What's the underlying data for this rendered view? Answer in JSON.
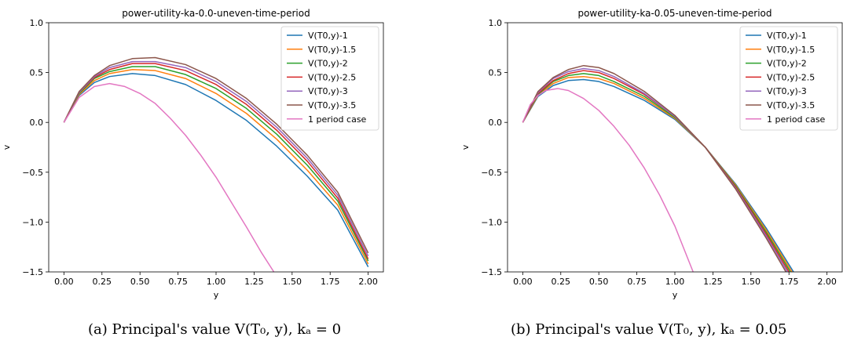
{
  "chart_data": [
    {
      "type": "line",
      "title": "power-utility-ka-0.0-uneven-time-period",
      "xlabel": "y",
      "ylabel": "v",
      "xlim": [
        -0.1,
        2.1
      ],
      "ylim": [
        -1.5,
        1.0
      ],
      "xticks": [
        "0.00",
        "0.25",
        "0.50",
        "0.75",
        "1.00",
        "1.25",
        "1.50",
        "1.75",
        "2.00"
      ],
      "yticks": [
        "1.0",
        "0.5",
        "0.0",
        "−0.5",
        "−1.0",
        "−1.5"
      ],
      "legend_position": "top-right",
      "grid": false,
      "series": [
        {
          "name": "V(T0,y)-1",
          "color": "#1f77b4",
          "x": [
            0,
            0.1,
            0.2,
            0.3,
            0.45,
            0.6,
            0.8,
            1.0,
            1.2,
            1.4,
            1.6,
            1.8,
            2.0
          ],
          "y": [
            0,
            0.27,
            0.4,
            0.46,
            0.49,
            0.47,
            0.38,
            0.22,
            0.02,
            -0.24,
            -0.54,
            -0.88,
            -1.45
          ]
        },
        {
          "name": "V(T0,y)-1.5",
          "color": "#ff7f0e",
          "x": [
            0,
            0.1,
            0.2,
            0.3,
            0.45,
            0.6,
            0.8,
            1.0,
            1.2,
            1.4,
            1.6,
            1.8,
            2.0
          ],
          "y": [
            0,
            0.28,
            0.42,
            0.49,
            0.53,
            0.52,
            0.44,
            0.29,
            0.09,
            -0.17,
            -0.48,
            -0.83,
            -1.42
          ]
        },
        {
          "name": "V(T0,y)-2",
          "color": "#2ca02c",
          "x": [
            0,
            0.1,
            0.2,
            0.3,
            0.45,
            0.6,
            0.8,
            1.0,
            1.2,
            1.4,
            1.6,
            1.8,
            2.0
          ],
          "y": [
            0,
            0.29,
            0.44,
            0.51,
            0.56,
            0.56,
            0.48,
            0.34,
            0.14,
            -0.12,
            -0.43,
            -0.79,
            -1.39
          ]
        },
        {
          "name": "V(T0,y)-2.5",
          "color": "#d62728",
          "x": [
            0,
            0.1,
            0.2,
            0.3,
            0.45,
            0.6,
            0.8,
            1.0,
            1.2,
            1.4,
            1.6,
            1.8,
            2.0
          ],
          "y": [
            0,
            0.3,
            0.45,
            0.53,
            0.59,
            0.59,
            0.52,
            0.38,
            0.18,
            -0.08,
            -0.39,
            -0.76,
            -1.37
          ]
        },
        {
          "name": "V(T0,y)-3",
          "color": "#9467bd",
          "x": [
            0,
            0.1,
            0.2,
            0.3,
            0.45,
            0.6,
            0.8,
            1.0,
            1.2,
            1.4,
            1.6,
            1.8,
            2.0
          ],
          "y": [
            0,
            0.3,
            0.46,
            0.55,
            0.61,
            0.61,
            0.55,
            0.41,
            0.21,
            -0.05,
            -0.36,
            -0.73,
            -1.34
          ]
        },
        {
          "name": "V(T0,y)-3.5",
          "color": "#8c564b",
          "x": [
            0,
            0.1,
            0.2,
            0.3,
            0.45,
            0.6,
            0.8,
            1.0,
            1.2,
            1.4,
            1.6,
            1.8,
            2.0
          ],
          "y": [
            0,
            0.31,
            0.47,
            0.57,
            0.64,
            0.65,
            0.58,
            0.44,
            0.24,
            -0.02,
            -0.33,
            -0.7,
            -1.31
          ]
        },
        {
          "name": "1 period case",
          "color": "#e377c2",
          "x": [
            0,
            0.1,
            0.2,
            0.3,
            0.4,
            0.5,
            0.6,
            0.7,
            0.8,
            0.9,
            1.0,
            1.1,
            1.2,
            1.3,
            1.38
          ],
          "y": [
            0,
            0.25,
            0.36,
            0.39,
            0.36,
            0.29,
            0.19,
            0.04,
            -0.13,
            -0.33,
            -0.55,
            -0.8,
            -1.05,
            -1.31,
            -1.5
          ]
        }
      ],
      "caption": "(a) Principal's value V(T₀, y), kₐ = 0"
    },
    {
      "type": "line",
      "title": "power-utility-ka-0.05-uneven-time-period",
      "xlabel": "y",
      "ylabel": "v",
      "xlim": [
        -0.1,
        2.1
      ],
      "ylim": [
        -1.5,
        1.0
      ],
      "xticks": [
        "0.00",
        "0.25",
        "0.50",
        "0.75",
        "1.00",
        "1.25",
        "1.50",
        "1.75",
        "2.00"
      ],
      "yticks": [
        "1.0",
        "0.5",
        "0.0",
        "−0.5",
        "−1.0",
        "−1.5"
      ],
      "legend_position": "top-right",
      "grid": false,
      "series": [
        {
          "name": "V(T0,y)-1",
          "color": "#1f77b4",
          "x": [
            0,
            0.1,
            0.2,
            0.3,
            0.4,
            0.5,
            0.6,
            0.8,
            1.0,
            1.2,
            1.4,
            1.6,
            1.78
          ],
          "y": [
            0,
            0.26,
            0.37,
            0.42,
            0.43,
            0.41,
            0.36,
            0.22,
            0.03,
            -0.25,
            -0.62,
            -1.06,
            -1.5
          ]
        },
        {
          "name": "V(T0,y)-1.5",
          "color": "#ff7f0e",
          "x": [
            0,
            0.1,
            0.2,
            0.3,
            0.4,
            0.5,
            0.6,
            0.8,
            1.0,
            1.2,
            1.4,
            1.6,
            1.77
          ],
          "y": [
            0,
            0.27,
            0.39,
            0.45,
            0.46,
            0.44,
            0.39,
            0.24,
            0.04,
            -0.25,
            -0.63,
            -1.08,
            -1.5
          ]
        },
        {
          "name": "V(T0,y)-2",
          "color": "#2ca02c",
          "x": [
            0,
            0.1,
            0.2,
            0.3,
            0.4,
            0.5,
            0.6,
            0.8,
            1.0,
            1.2,
            1.4,
            1.6,
            1.76
          ],
          "y": [
            0,
            0.28,
            0.41,
            0.47,
            0.49,
            0.47,
            0.41,
            0.26,
            0.05,
            -0.25,
            -0.64,
            -1.1,
            -1.5
          ]
        },
        {
          "name": "V(T0,y)-2.5",
          "color": "#d62728",
          "x": [
            0,
            0.1,
            0.2,
            0.3,
            0.4,
            0.5,
            0.6,
            0.8,
            1.0,
            1.2,
            1.4,
            1.6,
            1.75
          ],
          "y": [
            0,
            0.29,
            0.42,
            0.49,
            0.52,
            0.5,
            0.44,
            0.28,
            0.06,
            -0.25,
            -0.65,
            -1.12,
            -1.5
          ]
        },
        {
          "name": "V(T0,y)-3",
          "color": "#9467bd",
          "x": [
            0,
            0.1,
            0.2,
            0.3,
            0.4,
            0.5,
            0.6,
            0.8,
            1.0,
            1.2,
            1.4,
            1.6,
            1.74
          ],
          "y": [
            0,
            0.3,
            0.44,
            0.51,
            0.54,
            0.52,
            0.46,
            0.29,
            0.06,
            -0.25,
            -0.66,
            -1.14,
            -1.5
          ]
        },
        {
          "name": "V(T0,y)-3.5",
          "color": "#8c564b",
          "x": [
            0,
            0.1,
            0.2,
            0.3,
            0.4,
            0.5,
            0.6,
            0.8,
            1.0,
            1.2,
            1.4,
            1.6,
            1.73
          ],
          "y": [
            0,
            0.31,
            0.45,
            0.53,
            0.57,
            0.55,
            0.49,
            0.31,
            0.07,
            -0.25,
            -0.67,
            -1.16,
            -1.5
          ]
        },
        {
          "name": "1 period case",
          "color": "#e377c2",
          "x": [
            0,
            0.05,
            0.1,
            0.15,
            0.23,
            0.3,
            0.4,
            0.5,
            0.6,
            0.7,
            0.8,
            0.9,
            1.0,
            1.12
          ],
          "y": [
            0,
            0.18,
            0.27,
            0.32,
            0.34,
            0.32,
            0.24,
            0.12,
            -0.04,
            -0.23,
            -0.46,
            -0.73,
            -1.04,
            -1.5
          ]
        }
      ],
      "caption": "(b) Principal's value V(T₀, y), kₐ = 0.05"
    }
  ]
}
